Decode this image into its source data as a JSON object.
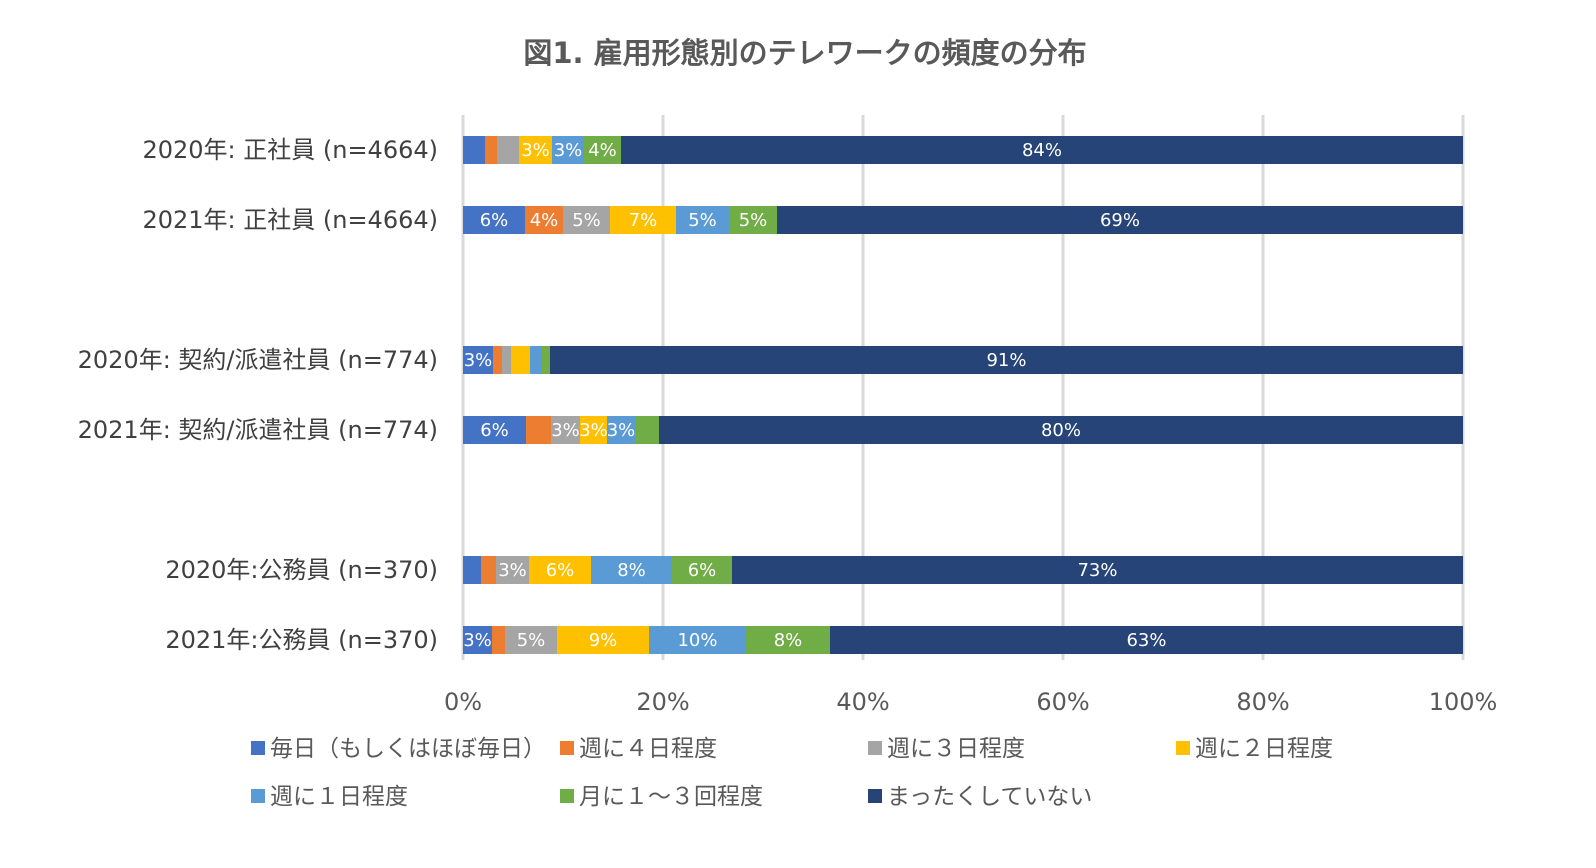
{
  "chart_data": {
    "type": "bar",
    "orientation": "horizontal",
    "stacked": "100%",
    "title": "図1. 雇用形態別のテレワークの頻度の分布",
    "categories": [
      "2020年: 正社員 (n=4664)",
      "2021年: 正社員 (n=4664)",
      "2020年: 契約/派遣社員 (n=774)",
      "2021年: 契約/派遣社員 (n=774)",
      "2020年:公務員 (n=370)",
      "2021年:公務員 (n=370)"
    ],
    "xlim": [
      0,
      100
    ],
    "x_ticks": [
      "0%",
      "20%",
      "40%",
      "60%",
      "80%",
      "100%"
    ],
    "grid": "vertical",
    "legend_position": "bottom",
    "series": [
      {
        "name": "毎日（もしくはほぼ毎日）",
        "color": "#4472c4",
        "values": [
          2.2,
          6.2,
          3.0,
          6.3,
          1.8,
          2.9
        ],
        "labels": [
          "",
          "6%",
          "3%",
          "6%",
          "",
          "3%"
        ]
      },
      {
        "name": "週に４日程度",
        "color": "#ed7d31",
        "values": [
          1.2,
          3.8,
          0.9,
          2.5,
          1.5,
          1.3
        ],
        "labels": [
          "",
          "4%",
          "",
          "",
          "",
          ""
        ]
      },
      {
        "name": "週に３日程度",
        "color": "#a5a5a5",
        "values": [
          2.2,
          4.7,
          0.9,
          2.9,
          3.3,
          5.2
        ],
        "labels": [
          "",
          "5%",
          "",
          "3%",
          "3%",
          "5%"
        ]
      },
      {
        "name": "週に２日程度",
        "color": "#ffc000",
        "values": [
          3.3,
          6.6,
          1.9,
          2.7,
          6.2,
          9.2
        ],
        "labels": [
          "3%",
          "7%",
          "",
          "3%",
          "6%",
          "9%"
        ]
      },
      {
        "name": "週に１日程度",
        "color": "#5b9bd5",
        "values": [
          3.2,
          5.3,
          1.1,
          2.8,
          8.1,
          9.7
        ],
        "labels": [
          "3%",
          "5%",
          "",
          "3%",
          "8%",
          "10%"
        ]
      },
      {
        "name": "月に１～３回程度",
        "color": "#70ad47",
        "values": [
          3.7,
          4.8,
          0.9,
          2.4,
          6.0,
          8.4
        ],
        "labels": [
          "4%",
          "5%",
          "",
          "",
          "6%",
          "8%"
        ]
      },
      {
        "name": "まったくしていない",
        "color": "#264478",
        "values": [
          84.2,
          68.6,
          91.3,
          80.4,
          73.1,
          63.3
        ],
        "labels": [
          "84%",
          "69%",
          "91%",
          "80%",
          "73%",
          "63%"
        ]
      }
    ]
  }
}
